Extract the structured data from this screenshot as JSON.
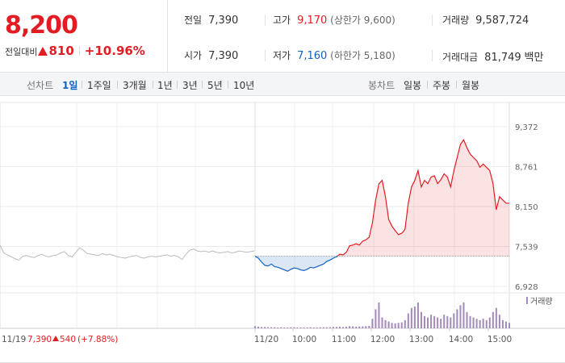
{
  "price": {
    "current": "8,200",
    "change_label": "전일대비",
    "change_value": "810",
    "change_percent": "+10.96%"
  },
  "stats": {
    "prev_close": {
      "label": "전일",
      "value": "7,390"
    },
    "open": {
      "label": "시가",
      "value": "7,390"
    },
    "high": {
      "label": "고가",
      "value": "9,170",
      "limit_text": "(상한가 9,600)"
    },
    "low": {
      "label": "저가",
      "value": "7,160",
      "limit_text": "(하한가 5,180)"
    },
    "volume": {
      "label": "거래량",
      "value": "9,587,724"
    },
    "amount": {
      "label": "거래대금",
      "value": "81,749",
      "unit": "백만"
    }
  },
  "tabs": {
    "line_label": "선차트",
    "line_items": [
      "1일",
      "1주일",
      "3개월",
      "1년",
      "3년",
      "5년",
      "10년"
    ],
    "active_line": "1일",
    "candle_label": "봉차트",
    "candle_items": [
      "일봉",
      "주봉",
      "월봉"
    ]
  },
  "colors": {
    "up": "#e31c23",
    "down": "#1261c4",
    "volume": "#a38ab8",
    "prev_day_line": "#bbbbbb"
  },
  "chart_data": {
    "type": "line",
    "y_ticks": [
      "9,372",
      "8,761",
      "8,150",
      "7,539",
      "6,928"
    ],
    "ylim": [
      6928,
      9372
    ],
    "baseline": 7390,
    "x_ticks": [
      "11/20",
      "10:00",
      "11:00",
      "12:00",
      "13:00",
      "14:00",
      "15:00"
    ],
    "volume_legend": "거래량",
    "prev_day": {
      "date": "11/19",
      "close": "7,390",
      "change": "540",
      "change_pct": "(+7.88%)",
      "values": [
        7560,
        7440,
        7410,
        7380,
        7350,
        7330,
        7390,
        7400,
        7380,
        7370,
        7400,
        7420,
        7390,
        7380,
        7400,
        7410,
        7440,
        7460,
        7400,
        7380,
        7450,
        7520,
        7480,
        7430,
        7420,
        7410,
        7400,
        7430,
        7410,
        7420,
        7400,
        7380,
        7370,
        7360,
        7380,
        7390,
        7400,
        7370,
        7360,
        7380,
        7390,
        7380,
        7390,
        7400,
        7410,
        7390,
        7400,
        7380,
        7340,
        7420,
        7480,
        7500,
        7470,
        7460,
        7470,
        7450,
        7470,
        7450,
        7440,
        7450,
        7460,
        7440,
        7450,
        7470,
        7460,
        7450,
        7460,
        7470
      ]
    },
    "today": {
      "times": [
        "09:00",
        "09:05",
        "09:10",
        "09:15",
        "09:20",
        "09:25",
        "09:30",
        "09:35",
        "09:40",
        "09:45",
        "09:50",
        "09:55",
        "10:00",
        "10:05",
        "10:10",
        "10:15",
        "10:20",
        "10:25",
        "10:30",
        "10:35",
        "10:40",
        "10:45",
        "10:50",
        "10:55",
        "11:00",
        "11:05",
        "11:10",
        "11:15",
        "11:20",
        "11:25",
        "11:30",
        "11:35",
        "11:40",
        "11:45",
        "11:50",
        "11:55",
        "12:00",
        "12:05",
        "12:10",
        "12:15",
        "12:20",
        "12:25",
        "12:30",
        "12:35",
        "12:40",
        "12:45",
        "12:50",
        "12:55",
        "13:00",
        "13:05",
        "13:10",
        "13:15",
        "13:20",
        "13:25",
        "13:30",
        "13:35",
        "13:40",
        "13:45",
        "13:50",
        "13:55",
        "14:00",
        "14:05",
        "14:10",
        "14:15",
        "14:20",
        "14:25",
        "14:30",
        "14:35",
        "14:40",
        "14:45",
        "14:50",
        "14:55",
        "15:00",
        "15:05",
        "15:10",
        "15:15",
        "15:20",
        "15:25",
        "15:30"
      ],
      "values": [
        7390,
        7360,
        7300,
        7250,
        7240,
        7270,
        7230,
        7220,
        7200,
        7180,
        7160,
        7190,
        7210,
        7200,
        7180,
        7170,
        7190,
        7220,
        7210,
        7230,
        7250,
        7270,
        7310,
        7330,
        7360,
        7380,
        7420,
        7410,
        7450,
        7550,
        7560,
        7580,
        7560,
        7620,
        7640,
        7680,
        7900,
        8250,
        8500,
        8550,
        8300,
        7950,
        7850,
        7780,
        7720,
        7740,
        7800,
        8200,
        8450,
        8550,
        8700,
        8450,
        8550,
        8500,
        8600,
        8620,
        8500,
        8560,
        8650,
        8600,
        8450,
        8700,
        8900,
        9100,
        9170,
        9050,
        8950,
        8900,
        8850,
        8750,
        8800,
        8750,
        8700,
        8500,
        8100,
        8300,
        8250,
        8200,
        8200
      ],
      "volumes": [
        8,
        6,
        5,
        5,
        4,
        4,
        4,
        3,
        4,
        3,
        3,
        4,
        4,
        3,
        3,
        3,
        3,
        4,
        3,
        3,
        4,
        4,
        4,
        4,
        5,
        5,
        6,
        5,
        6,
        8,
        7,
        6,
        7,
        7,
        8,
        9,
        35,
        70,
        95,
        40,
        30,
        25,
        20,
        18,
        20,
        22,
        30,
        55,
        75,
        80,
        95,
        60,
        45,
        40,
        50,
        45,
        40,
        35,
        50,
        45,
        40,
        55,
        70,
        85,
        95,
        60,
        45,
        40,
        35,
        30,
        35,
        30,
        40,
        60,
        75,
        50,
        30,
        25,
        20
      ]
    }
  }
}
